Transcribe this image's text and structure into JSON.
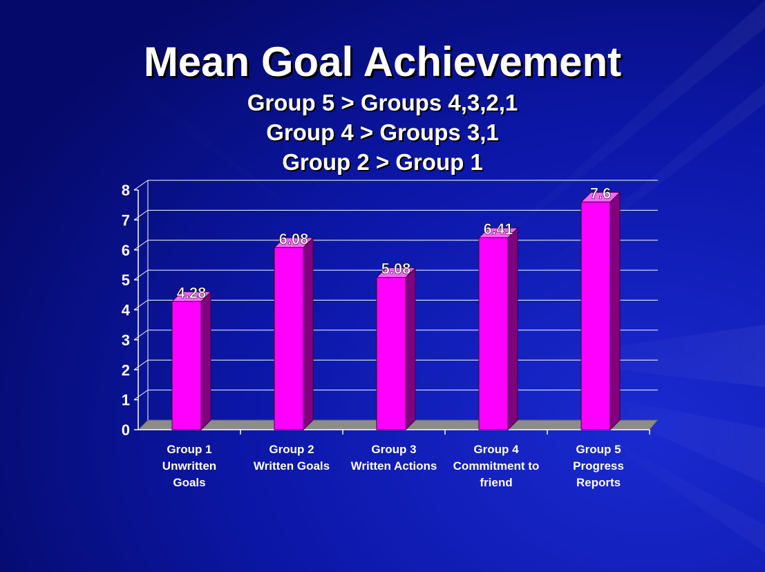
{
  "title": "Mean Goal Achievement",
  "subtitles": [
    "Group 5 > Groups 4,3,2,1",
    "Group 4 > Groups 3,1",
    "Group 2 > Group 1"
  ],
  "colors": {
    "bar_front": "#ff00ff",
    "bar_side": "#800080",
    "bar_top": "#ff66ff",
    "floor": "#8c8c8c",
    "grid": "#ffffff",
    "background": "#0a14a0"
  },
  "chart_data": {
    "type": "bar",
    "title": "Mean Goal Achievement",
    "categories": [
      [
        "Group 1",
        "Unwritten",
        "Goals"
      ],
      [
        "Group 2",
        "Written Goals"
      ],
      [
        "Group 3",
        "Written Actions"
      ],
      [
        "Group 4",
        "Commitment to",
        "friend"
      ],
      [
        "Group 5",
        "Progress",
        "Reports"
      ]
    ],
    "values": [
      4.28,
      6.08,
      5.08,
      6.41,
      7.6
    ],
    "data_labels": [
      "4.28",
      "6.08",
      "5.08",
      "6.41",
      "7.6"
    ],
    "ylim": [
      0,
      8
    ],
    "yticks": [
      0,
      1,
      2,
      3,
      4,
      5,
      6,
      7,
      8
    ],
    "grid": true,
    "legend": "none",
    "style": "3d-column"
  }
}
